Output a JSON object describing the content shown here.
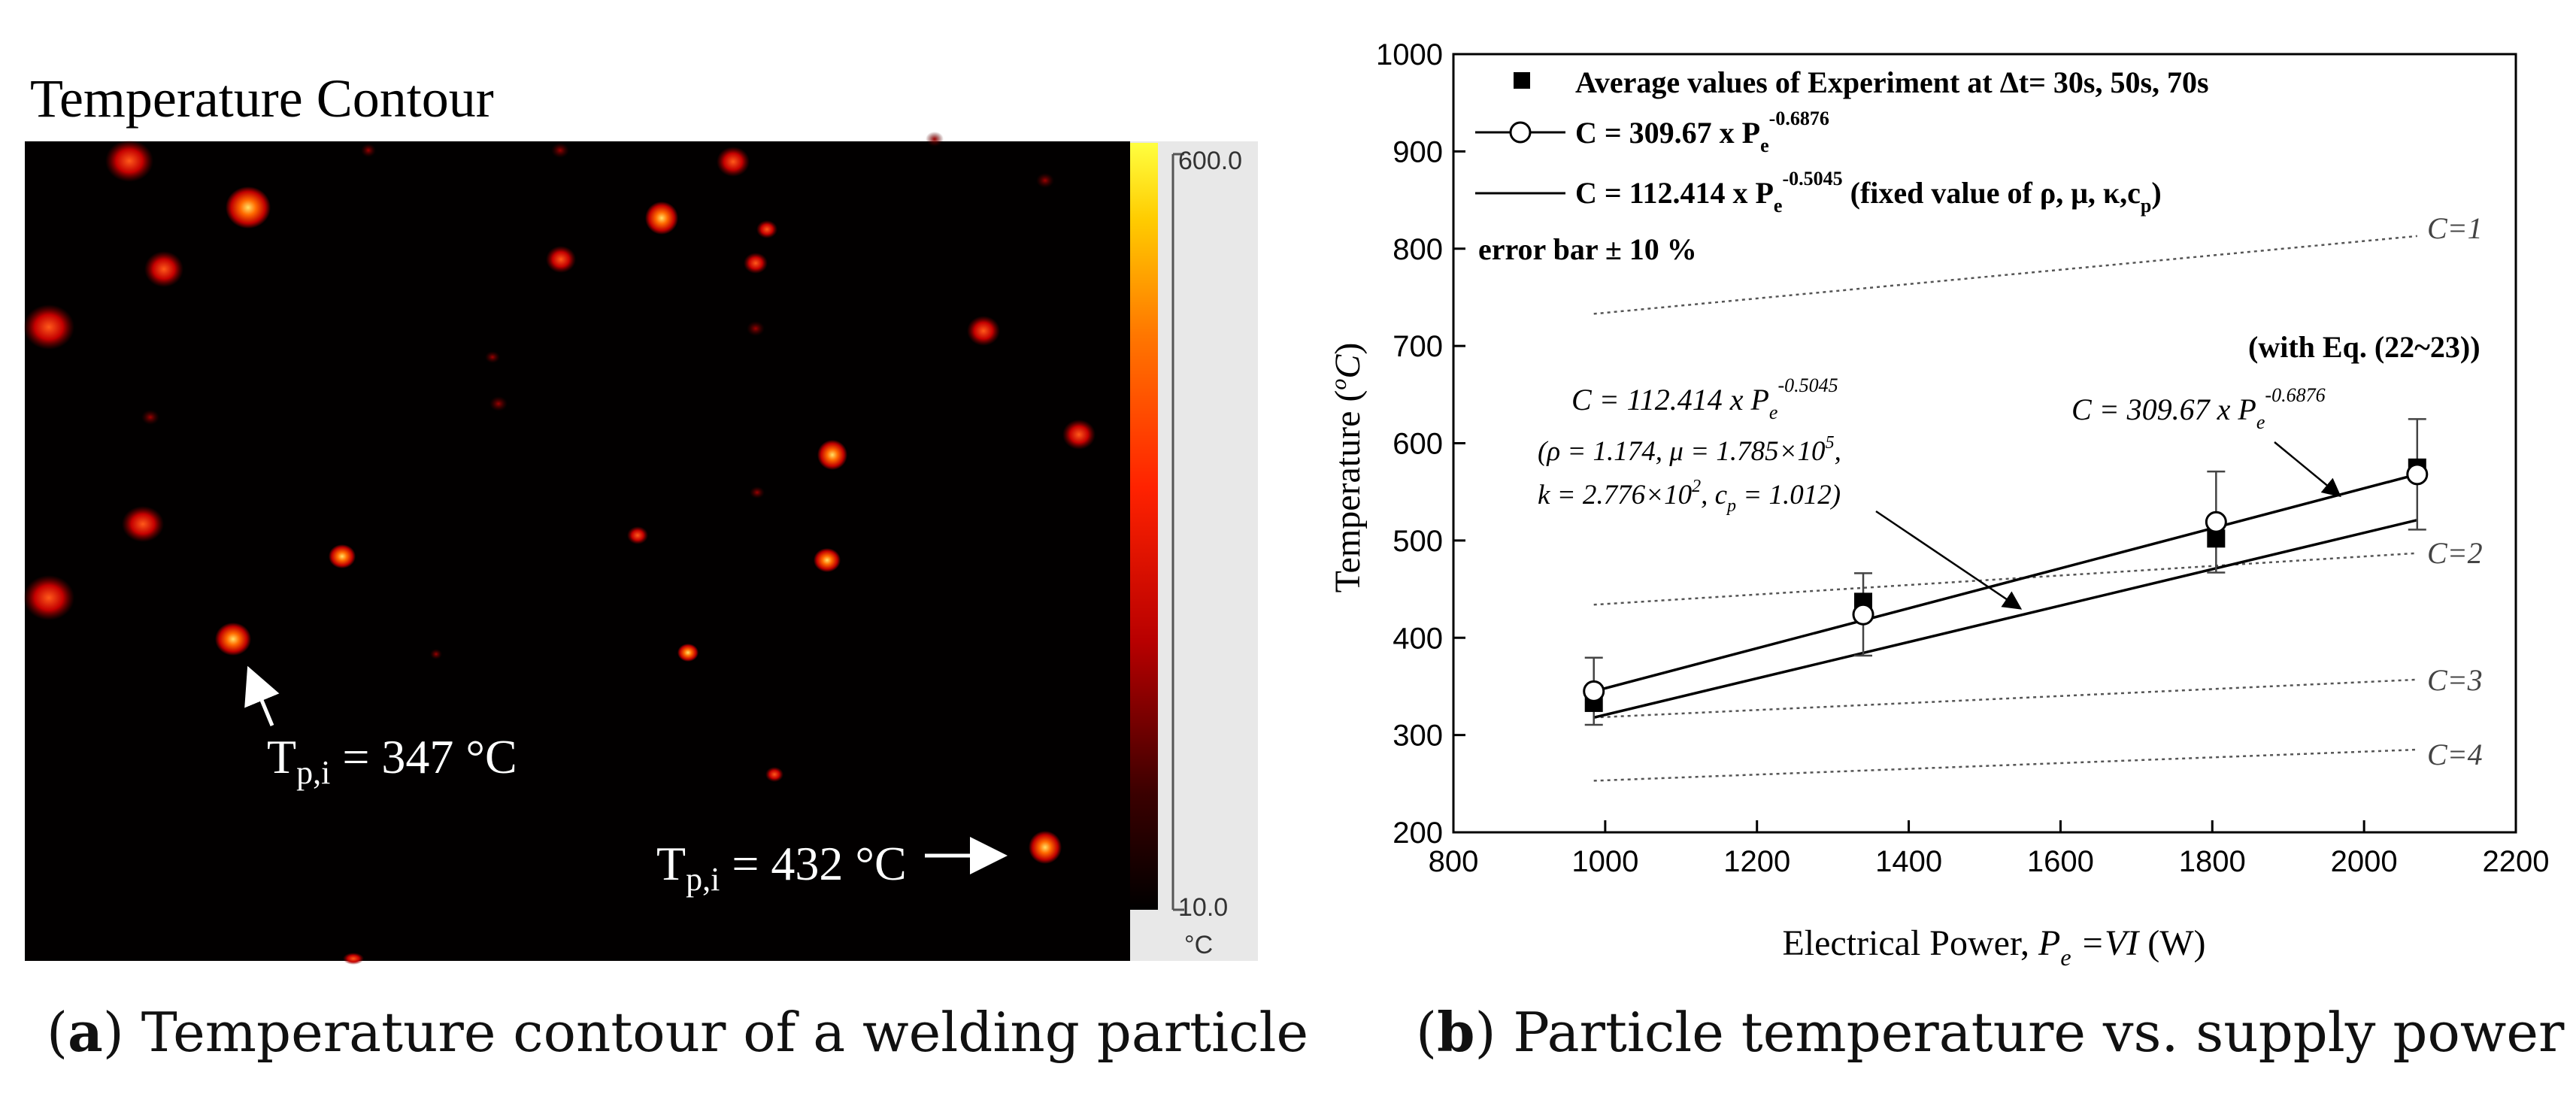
{
  "panel_a": {
    "title": "Temperature Contour",
    "colorbar": {
      "max_label": "600.0",
      "min_label": "10.0",
      "unit": "°C",
      "colors": [
        "#000000",
        "#3a0000",
        "#b80000",
        "#ff2200",
        "#ff7700",
        "#ffcc00",
        "#ffff40"
      ]
    },
    "annotations": [
      {
        "prefix": "T",
        "sub": "p,i",
        "text": " = 347 °C"
      },
      {
        "prefix": "T",
        "sub": "p,i",
        "text": " = 432 °C"
      }
    ],
    "caption_letter": "a",
    "caption_text": " Temperature contour of a welding particle"
  },
  "panel_b": {
    "caption_letter": "b",
    "caption_text": " Particle temperature vs. supply power",
    "legend": {
      "experiment": "Average values of Experiment at Δt= 30s, 50s, 70s",
      "fit1_pre": "C = 309.67 x P",
      "fit1_sub": "e",
      "fit1_sup": "-0.6876",
      "fit2_pre": "C = 112.414 x P",
      "fit2_sub": "e",
      "fit2_sup": "-0.5045",
      "fit2_note_pre": "  (fixed value of ρ, μ, κ,c",
      "fit2_note_sub": "p",
      "fit2_note_post": ")",
      "error_bar": "error bar ± 10 %"
    },
    "note_eq": "(with Eq. (22~23))",
    "annot_fit2": {
      "line1_pre": "C = 112.414 x P",
      "line1_sub": "e",
      "line1_sup": "-0.5045",
      "line2": "(ρ = 1.174, μ = 1.785×10",
      "line2_sup": "5",
      "line2_post": ",",
      "line3_pre": "k = 2.776×10",
      "line3_sup": "2",
      "line3_mid": ", c",
      "line3_sub": "p",
      "line3_post": " = 1.012)"
    },
    "annot_fit1": {
      "pre": "C = 309.67 x P",
      "sub": "e",
      "sup": "-0.6876"
    },
    "c_labels": [
      "C=1",
      "C=2",
      "C=3",
      "C=4"
    ]
  },
  "chart_data": {
    "type": "line",
    "title": "",
    "xlabel_pre": "Electrical Power, ",
    "xlabel_var": "P",
    "xlabel_sub": "e",
    "xlabel_eq": " =VI",
    "xlabel_post": " (W)",
    "ylabel_pre": "Temperature (",
    "ylabel_var": "C",
    "ylabel_sup": "o",
    "ylabel_post": ")",
    "xlim": [
      800,
      2200
    ],
    "ylim": [
      200,
      1000
    ],
    "xticks": [
      800,
      1000,
      1200,
      1400,
      1600,
      1800,
      2000,
      2200
    ],
    "yticks": [
      200,
      300,
      400,
      500,
      600,
      700,
      800,
      900,
      1000
    ],
    "experiment": {
      "x": [
        985,
        1340,
        1805,
        2070
      ],
      "y": [
        333,
        437,
        502,
        575
      ]
    },
    "model_c309": {
      "x": [
        985,
        1340,
        1805,
        2070
      ],
      "y": [
        345,
        424,
        519,
        568
      ]
    },
    "error_bar_fraction": 0.1,
    "fit_c309": {
      "x": [
        985,
        2070
      ],
      "y": [
        345,
        568
      ]
    },
    "fit_c112": {
      "x": [
        985,
        2070
      ],
      "y": [
        318,
        521
      ]
    },
    "c_curves": [
      {
        "name": "C=1",
        "x": [
          985,
          2070
        ],
        "y": [
          733,
          813
        ]
      },
      {
        "name": "C=2",
        "x": [
          985,
          2070
        ],
        "y": [
          434,
          487
        ]
      },
      {
        "name": "C=3",
        "x": [
          985,
          2070
        ],
        "y": [
          318,
          357
        ]
      },
      {
        "name": "C=4",
        "x": [
          985,
          2070
        ],
        "y": [
          253,
          285
        ]
      }
    ]
  }
}
